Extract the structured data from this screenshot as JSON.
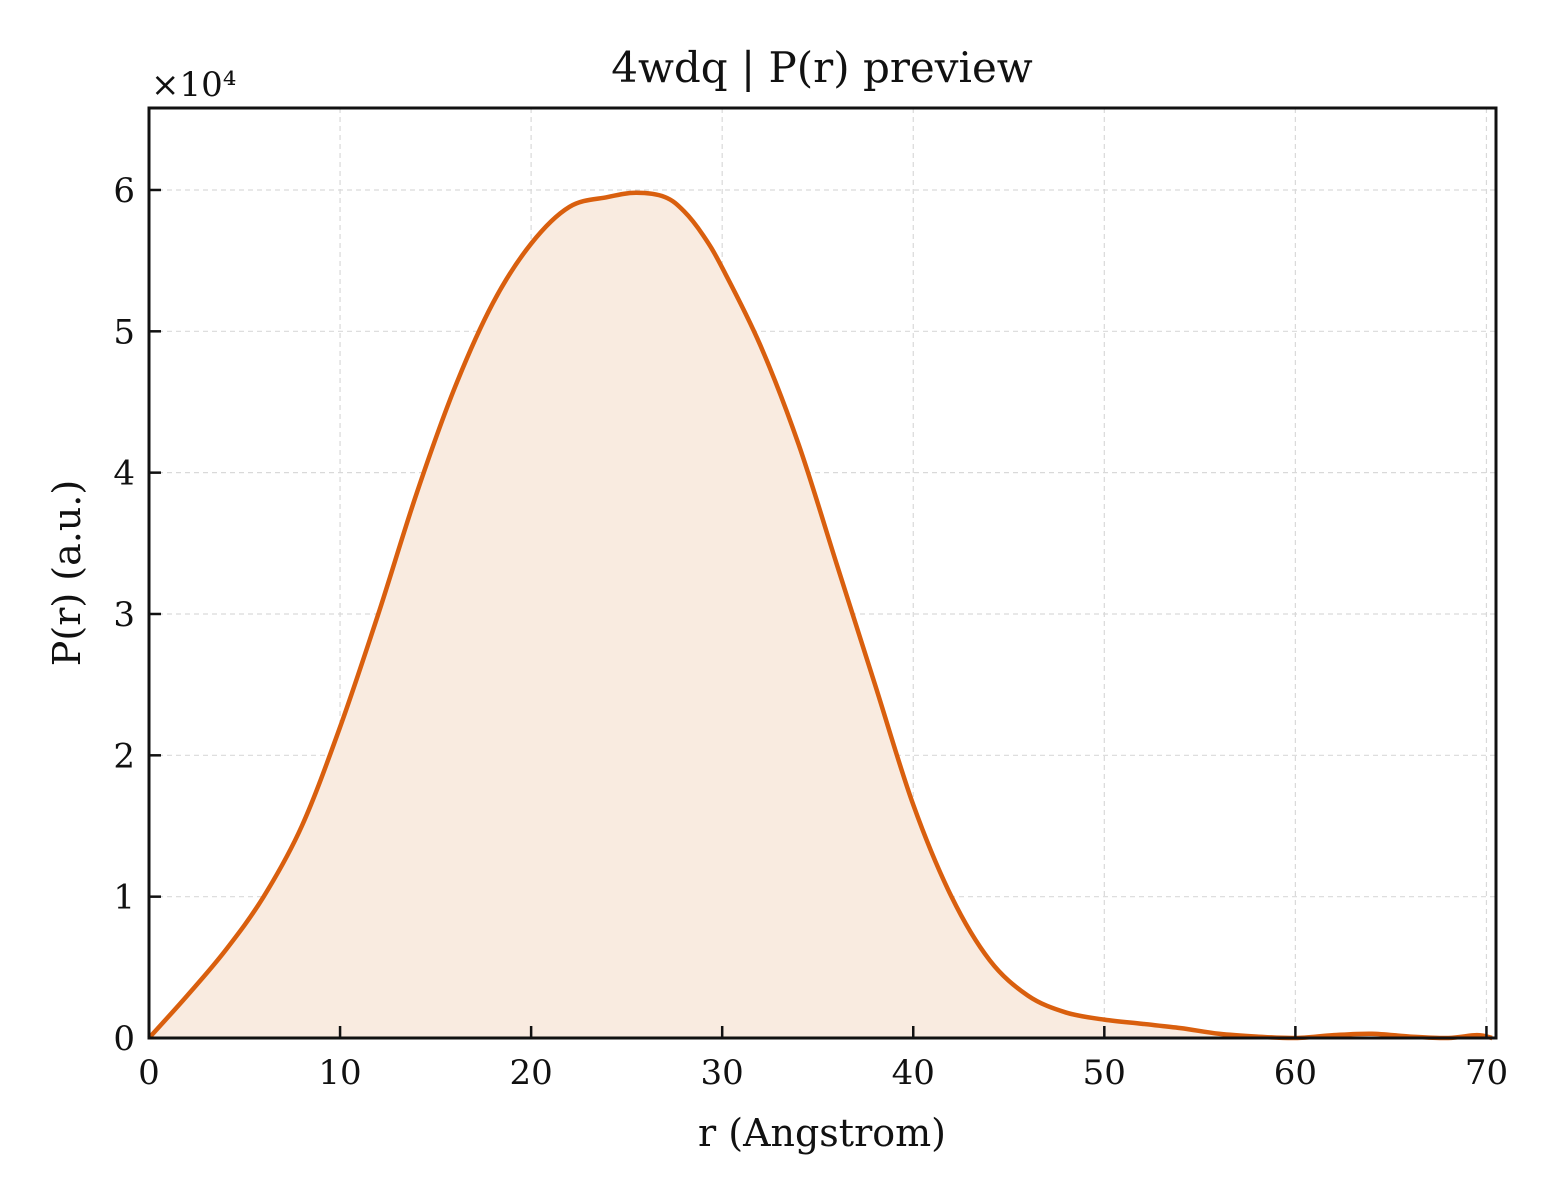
{
  "chart_data": {
    "type": "area",
    "title": "4wdq | P(r) preview",
    "xlabel": "r (Angstrom)",
    "ylabel": "P(r) (a.u.)",
    "y_scale_label": "×10⁴",
    "xlim": [
      0,
      70.5
    ],
    "ylim": [
      0,
      6.58
    ],
    "y_multiplier": 10000,
    "xticks": [
      0,
      10,
      20,
      30,
      40,
      50,
      60,
      70
    ],
    "yticks": [
      0,
      1,
      2,
      3,
      4,
      5,
      6
    ],
    "grid": true,
    "line_color": "#d95f0e",
    "fill_color": "#f9ebe0",
    "series": [
      {
        "x": [
          0,
          2,
          4,
          6,
          8,
          10,
          12,
          14,
          16,
          18,
          20,
          22,
          24,
          25.5,
          27,
          28,
          29,
          30,
          32,
          34,
          36,
          38,
          40,
          42,
          44,
          46,
          48,
          50,
          52,
          54,
          56,
          58,
          60,
          62,
          64,
          66,
          68,
          69.5,
          70.3
        ],
        "y": [
          0,
          0.3,
          0.62,
          1.0,
          1.5,
          2.2,
          3.0,
          3.85,
          4.6,
          5.2,
          5.62,
          5.88,
          5.95,
          5.98,
          5.95,
          5.85,
          5.68,
          5.45,
          4.9,
          4.2,
          3.35,
          2.5,
          1.65,
          1.0,
          0.55,
          0.3,
          0.18,
          0.13,
          0.1,
          0.07,
          0.03,
          0.01,
          0.0,
          0.02,
          0.03,
          0.01,
          0.0,
          0.02,
          0.0
        ]
      }
    ]
  }
}
